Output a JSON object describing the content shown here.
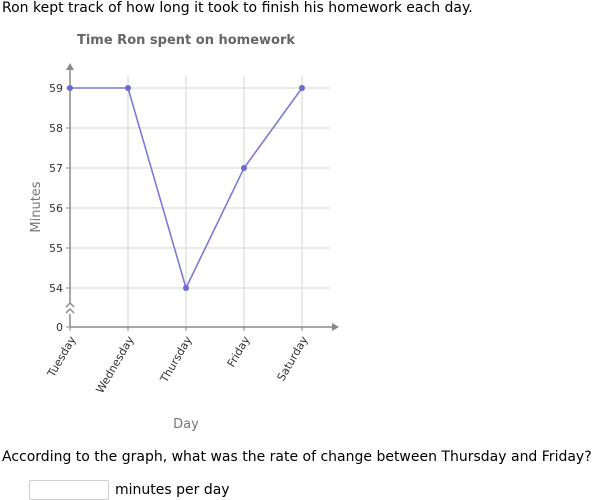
{
  "prompt": "Ron kept track of how long it took to finish his homework each day.",
  "question": "According to the graph, what was the rate of change between Thursday and Friday?",
  "answer": {
    "value": "",
    "placeholder": "",
    "unit": "minutes per day"
  },
  "chart_data": {
    "type": "line",
    "title": "Time Ron spent on homework",
    "xlabel": "Day",
    "ylabel": "Minutes",
    "categories": [
      "Tuesday",
      "Wednesday",
      "Thursday",
      "Friday",
      "Saturday"
    ],
    "values": [
      59,
      59,
      54,
      57,
      59
    ],
    "yticks": [
      0,
      54,
      55,
      56,
      57,
      58,
      59
    ],
    "ylim": [
      54,
      59
    ],
    "axis_break": true,
    "grid": true,
    "colors": {
      "line": "#7b7bd6",
      "point": "#6a6ad0",
      "grid": "#d3d3d3",
      "axis": "#8a8a8a",
      "title": "#666666",
      "label": "#777777"
    }
  }
}
